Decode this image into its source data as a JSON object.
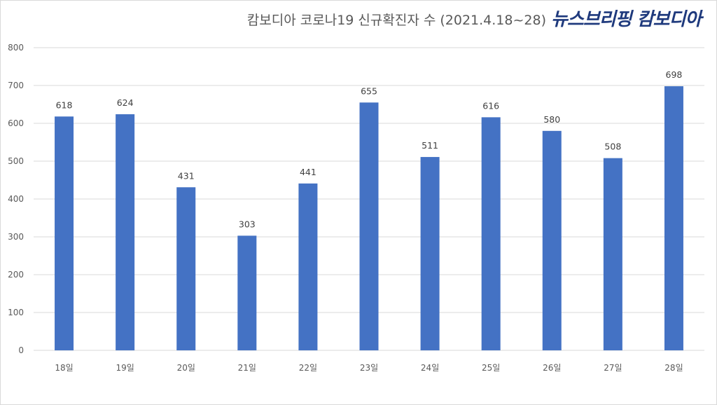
{
  "header": {
    "title": "캄보디아 코로나19 신규확진자 수 (2021.4.18~28)",
    "brand": "뉴스브리핑 캄보디아"
  },
  "colors": {
    "bar": "#4472c4",
    "grid": "#d9d9d9",
    "text": "#595959"
  },
  "chart_data": {
    "type": "bar",
    "title": "캄보디아 코로나19 신규확진자 수 (2021.4.18~28)",
    "categories": [
      "18일",
      "19일",
      "20일",
      "21일",
      "22일",
      "23일",
      "24일",
      "25일",
      "26일",
      "27일",
      "28일"
    ],
    "values": [
      618,
      624,
      431,
      303,
      441,
      655,
      511,
      616,
      580,
      508,
      698
    ],
    "yticks": [
      0,
      100,
      200,
      300,
      400,
      500,
      600,
      700,
      800
    ],
    "ylim": [
      0,
      800
    ],
    "xlabel": "",
    "ylabel": "",
    "grid": true,
    "legend": "none",
    "data_labels": true
  }
}
